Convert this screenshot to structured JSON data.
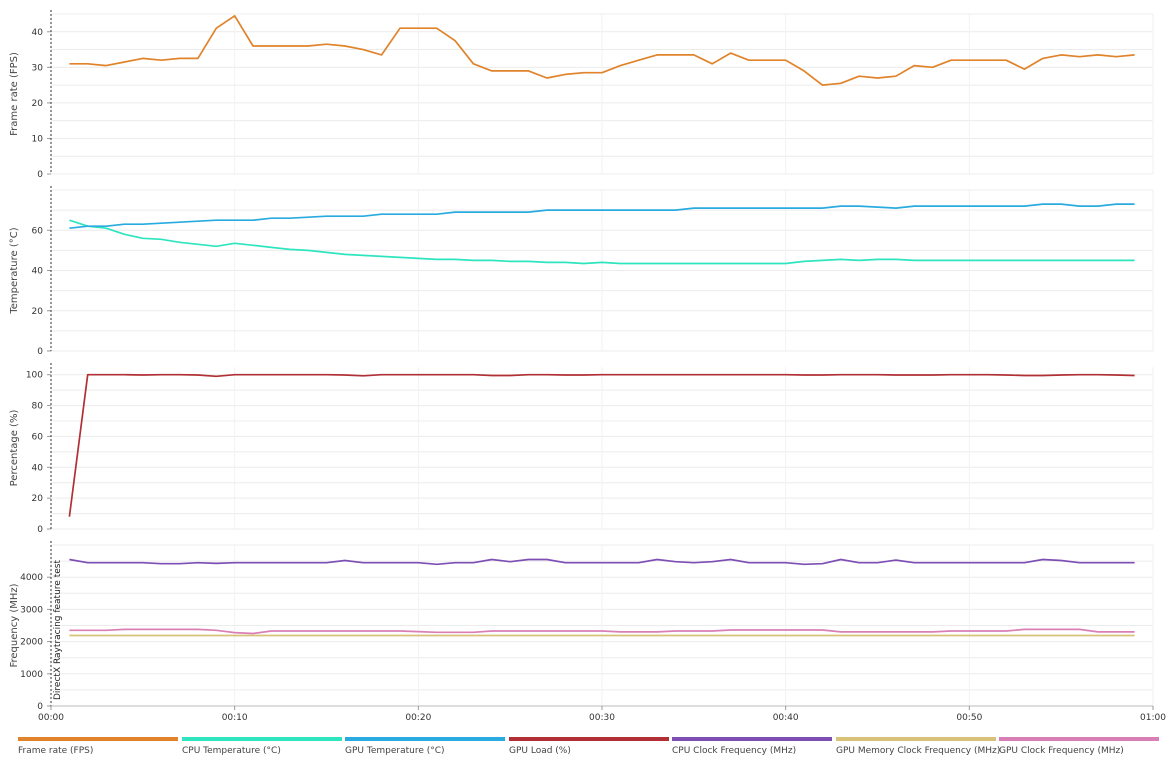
{
  "chart_data": {
    "type": "line",
    "x_unit": "seconds",
    "x_ticks": [
      "00:00",
      "00:10",
      "00:20",
      "00:30",
      "00:40",
      "00:50",
      "01:00"
    ],
    "xlim": [
      0,
      60
    ],
    "marker": {
      "x": 0,
      "label": "DirectX Raytracing feature test"
    },
    "legend_position": "bottom",
    "panels": [
      {
        "ylabel": "Frame rate (FPS)",
        "ylim": [
          0,
          45
        ],
        "yticks": [
          0,
          10,
          20,
          30,
          40
        ],
        "series": [
          {
            "name": "Frame rate (FPS)",
            "color": "#e0832a",
            "x": [
              1,
              2,
              3,
              4,
              5,
              6,
              7,
              8,
              9,
              10,
              11,
              12,
              13,
              14,
              15,
              16,
              17,
              18,
              19,
              20,
              21,
              22,
              23,
              24,
              25,
              26,
              27,
              28,
              29,
              30,
              31,
              32,
              33,
              34,
              35,
              36,
              37,
              38,
              39,
              40,
              41,
              42,
              43,
              44,
              45,
              46,
              47,
              48,
              49,
              50,
              51,
              52,
              53,
              54,
              55,
              56,
              57,
              58,
              59
            ],
            "y": [
              31,
              31,
              30.5,
              31.5,
              32.5,
              32,
              32.5,
              32.5,
              41,
              44.5,
              36,
              36,
              36,
              36,
              36.5,
              36,
              35,
              33.5,
              41,
              41,
              41,
              37.5,
              31,
              29,
              29,
              29,
              27,
              28,
              28.5,
              28.5,
              30.5,
              32,
              33.5,
              33.5,
              33.5,
              31,
              34,
              32,
              32,
              32,
              29,
              25,
              25.5,
              27.5,
              27,
              27.5,
              30.5,
              30,
              32,
              32,
              32,
              32,
              29.5,
              32.5,
              33.5,
              33,
              33.5,
              33,
              33.5
            ]
          }
        ]
      },
      {
        "ylabel": "Temperature (°C)",
        "ylim": [
          0,
          80
        ],
        "yticks": [
          0,
          20,
          40,
          60
        ],
        "series": [
          {
            "name": "CPU Temperature (°C)",
            "color": "#2ee5c0",
            "x": [
              1,
              2,
              3,
              4,
              5,
              6,
              7,
              8,
              9,
              10,
              11,
              12,
              13,
              14,
              15,
              16,
              17,
              18,
              19,
              20,
              21,
              22,
              23,
              24,
              25,
              26,
              27,
              28,
              29,
              30,
              31,
              32,
              33,
              34,
              35,
              36,
              37,
              38,
              39,
              40,
              41,
              42,
              43,
              44,
              45,
              46,
              47,
              48,
              49,
              50,
              51,
              52,
              53,
              54,
              55,
              56,
              57,
              58,
              59
            ],
            "y": [
              65,
              62,
              61,
              58,
              56,
              55.5,
              54,
              53,
              52,
              53.5,
              52.5,
              51.5,
              50.5,
              50,
              49,
              48,
              47.5,
              47,
              46.5,
              46,
              45.5,
              45.5,
              45,
              45,
              44.5,
              44.5,
              44,
              44,
              43.5,
              44,
              43.5,
              43.5,
              43.5,
              43.5,
              43.5,
              43.5,
              43.5,
              43.5,
              43.5,
              43.5,
              44.5,
              45,
              45.5,
              45,
              45.5,
              45.5,
              45,
              45,
              45,
              45,
              45,
              45,
              45,
              45,
              45,
              45,
              45,
              45,
              45
            ]
          },
          {
            "name": "GPU Temperature (°C)",
            "color": "#29abe0",
            "x": [
              1,
              2,
              3,
              4,
              5,
              6,
              7,
              8,
              9,
              10,
              11,
              12,
              13,
              14,
              15,
              16,
              17,
              18,
              19,
              20,
              21,
              22,
              23,
              24,
              25,
              26,
              27,
              28,
              29,
              30,
              31,
              32,
              33,
              34,
              35,
              36,
              37,
              38,
              39,
              40,
              41,
              42,
              43,
              44,
              45,
              46,
              47,
              48,
              49,
              50,
              51,
              52,
              53,
              54,
              55,
              56,
              57,
              58,
              59
            ],
            "y": [
              61,
              62,
              62,
              63,
              63,
              63.5,
              64,
              64.5,
              65,
              65,
              65,
              66,
              66,
              66.5,
              67,
              67,
              67,
              68,
              68,
              68,
              68,
              69,
              69,
              69,
              69,
              69,
              70,
              70,
              70,
              70,
              70,
              70,
              70,
              70,
              71,
              71,
              71,
              71,
              71,
              71,
              71,
              71,
              72,
              72,
              71.5,
              71,
              72,
              72,
              72,
              72,
              72,
              72,
              72,
              73,
              73,
              72,
              72,
              73,
              73
            ]
          }
        ]
      },
      {
        "ylabel": "Percentage (%)",
        "ylim": [
          0,
          105
        ],
        "yticks": [
          0,
          20,
          40,
          60,
          80,
          100
        ],
        "series": [
          {
            "name": "GPU Load (%)",
            "color": "#b03035",
            "x": [
              1,
              2,
              3,
              4,
              5,
              6,
              7,
              8,
              9,
              10,
              11,
              12,
              13,
              14,
              15,
              16,
              17,
              18,
              19,
              20,
              21,
              22,
              23,
              24,
              25,
              26,
              27,
              28,
              29,
              30,
              31,
              32,
              33,
              34,
              35,
              36,
              37,
              38,
              39,
              40,
              41,
              42,
              43,
              44,
              45,
              46,
              47,
              48,
              49,
              50,
              51,
              52,
              53,
              54,
              55,
              56,
              57,
              58,
              59
            ],
            "y": [
              8,
              100,
              100,
              100,
              99.8,
              100,
              100,
              99.8,
              99,
              100,
              100,
              100,
              100,
              100,
              100,
              99.8,
              99.3,
              100,
              100,
              100,
              100,
              100,
              100,
              99.5,
              99.5,
              100,
              100,
              99.8,
              99.8,
              100,
              100,
              100,
              100,
              100,
              100,
              100,
              100,
              100,
              100,
              100,
              99.8,
              99.8,
              100,
              100,
              100,
              99.8,
              99.8,
              99.8,
              100,
              100,
              100,
              99.8,
              99.5,
              99.5,
              99.8,
              100,
              100,
              99.8,
              99.5
            ]
          }
        ]
      },
      {
        "ylabel": "Frequency (MHz)",
        "ylim": [
          0,
          5000
        ],
        "yticks": [
          0,
          1000,
          2000,
          3000,
          4000
        ],
        "series": [
          {
            "name": "CPU Clock Frequency (MHz)",
            "color": "#7d4fb5",
            "x": [
              1,
              2,
              3,
              4,
              5,
              6,
              7,
              8,
              9,
              10,
              11,
              12,
              13,
              14,
              15,
              16,
              17,
              18,
              19,
              20,
              21,
              22,
              23,
              24,
              25,
              26,
              27,
              28,
              29,
              30,
              31,
              32,
              33,
              34,
              35,
              36,
              37,
              38,
              39,
              40,
              41,
              42,
              43,
              44,
              45,
              46,
              47,
              48,
              49,
              50,
              51,
              52,
              53,
              54,
              55,
              56,
              57,
              58,
              59
            ],
            "y": [
              4550,
              4450,
              4450,
              4450,
              4450,
              4420,
              4420,
              4450,
              4430,
              4450,
              4450,
              4450,
              4450,
              4450,
              4450,
              4520,
              4450,
              4450,
              4450,
              4450,
              4400,
              4450,
              4450,
              4550,
              4480,
              4550,
              4550,
              4450,
              4450,
              4450,
              4450,
              4450,
              4550,
              4480,
              4450,
              4480,
              4550,
              4450,
              4450,
              4450,
              4400,
              4420,
              4550,
              4450,
              4450,
              4530,
              4450,
              4450,
              4450,
              4450,
              4450,
              4450,
              4450,
              4550,
              4520,
              4450,
              4450,
              4450,
              4450
            ]
          },
          {
            "name": "GPU Memory Clock Frequency (MHz)",
            "color": "#d8c277",
            "x": [
              1,
              59
            ],
            "y": [
              2190,
              2190
            ]
          },
          {
            "name": "GPU Clock Frequency (MHz)",
            "color": "#d97fb5",
            "x": [
              1,
              2,
              3,
              4,
              5,
              6,
              7,
              8,
              9,
              10,
              11,
              12,
              13,
              14,
              15,
              16,
              17,
              18,
              19,
              20,
              21,
              22,
              23,
              24,
              25,
              26,
              27,
              28,
              29,
              30,
              31,
              32,
              33,
              34,
              35,
              36,
              37,
              38,
              39,
              40,
              41,
              42,
              43,
              44,
              45,
              46,
              47,
              48,
              49,
              50,
              51,
              52,
              53,
              54,
              55,
              56,
              57,
              58,
              59
            ],
            "y": [
              2350,
              2350,
              2350,
              2380,
              2380,
              2380,
              2380,
              2380,
              2350,
              2280,
              2250,
              2330,
              2330,
              2330,
              2330,
              2330,
              2330,
              2330,
              2330,
              2310,
              2290,
              2290,
              2290,
              2330,
              2330,
              2330,
              2330,
              2330,
              2330,
              2330,
              2300,
              2300,
              2300,
              2330,
              2330,
              2330,
              2360,
              2360,
              2360,
              2360,
              2360,
              2360,
              2300,
              2300,
              2300,
              2300,
              2300,
              2300,
              2330,
              2330,
              2330,
              2330,
              2380,
              2380,
              2380,
              2380,
              2300,
              2300,
              2300
            ]
          }
        ]
      }
    ]
  },
  "legend": [
    {
      "label": "Frame rate (FPS)",
      "color": "#e0832a"
    },
    {
      "label": "CPU Temperature (°C)",
      "color": "#2ee5c0"
    },
    {
      "label": "GPU Temperature (°C)",
      "color": "#29abe0"
    },
    {
      "label": "GPU Load (%)",
      "color": "#b03035"
    },
    {
      "label": "CPU Clock Frequency (MHz)",
      "color": "#7d4fb5"
    },
    {
      "label": "GPU Memory Clock Frequency (MHz)",
      "color": "#d8c277"
    },
    {
      "label": "GPU Clock Frequency (MHz)",
      "color": "#d97fb5"
    }
  ]
}
